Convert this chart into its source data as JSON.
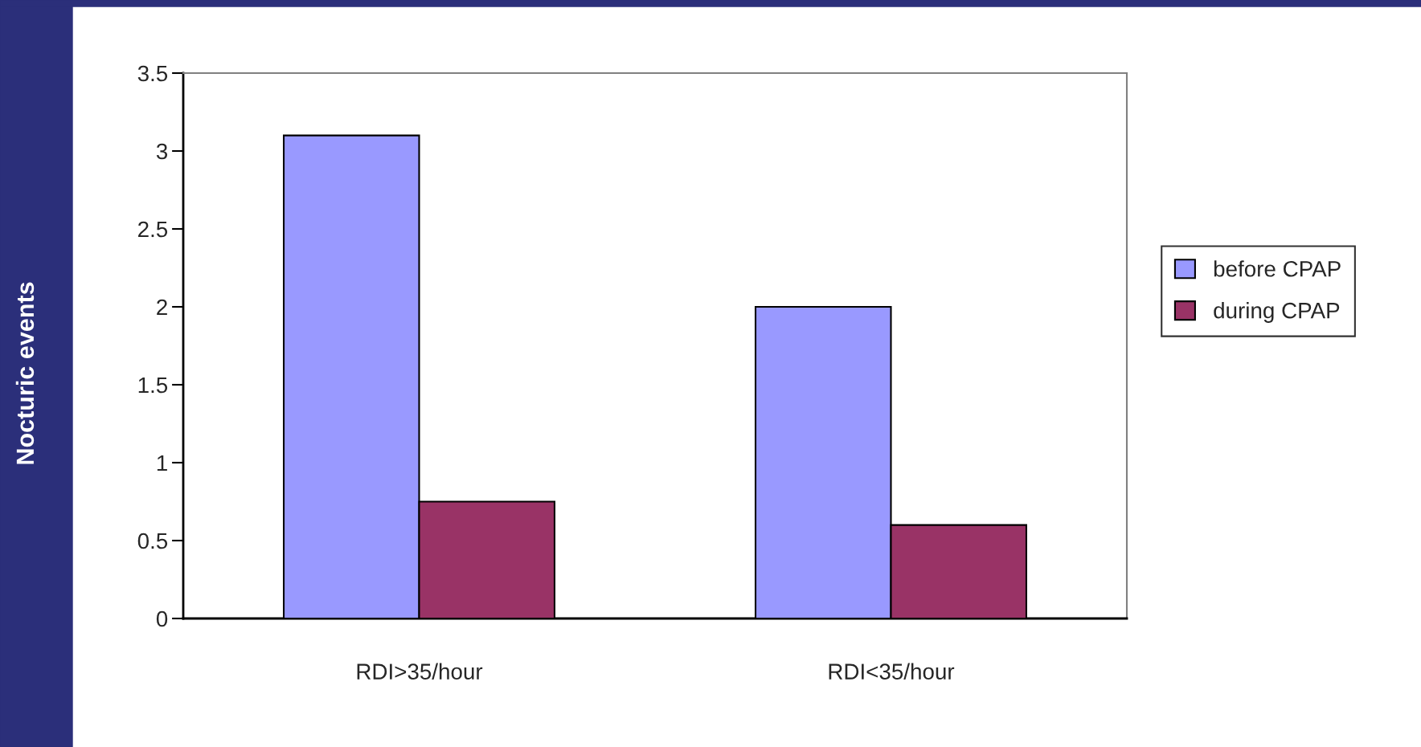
{
  "chart_data": {
    "type": "bar",
    "ylabel": "Nocturic events",
    "categories": [
      "RDI>35/hour",
      "RDI<35/hour"
    ],
    "series": [
      {
        "name": "before CPAP",
        "color": "#9999ff",
        "values": [
          3.1,
          2.0
        ]
      },
      {
        "name": "during CPAP",
        "color": "#993366",
        "values": [
          0.75,
          0.6
        ]
      }
    ],
    "ylim": [
      0,
      3.5
    ],
    "yticks": [
      0,
      0.5,
      1,
      1.5,
      2,
      2.5,
      3,
      3.5
    ],
    "grid": false,
    "legend": "right"
  }
}
